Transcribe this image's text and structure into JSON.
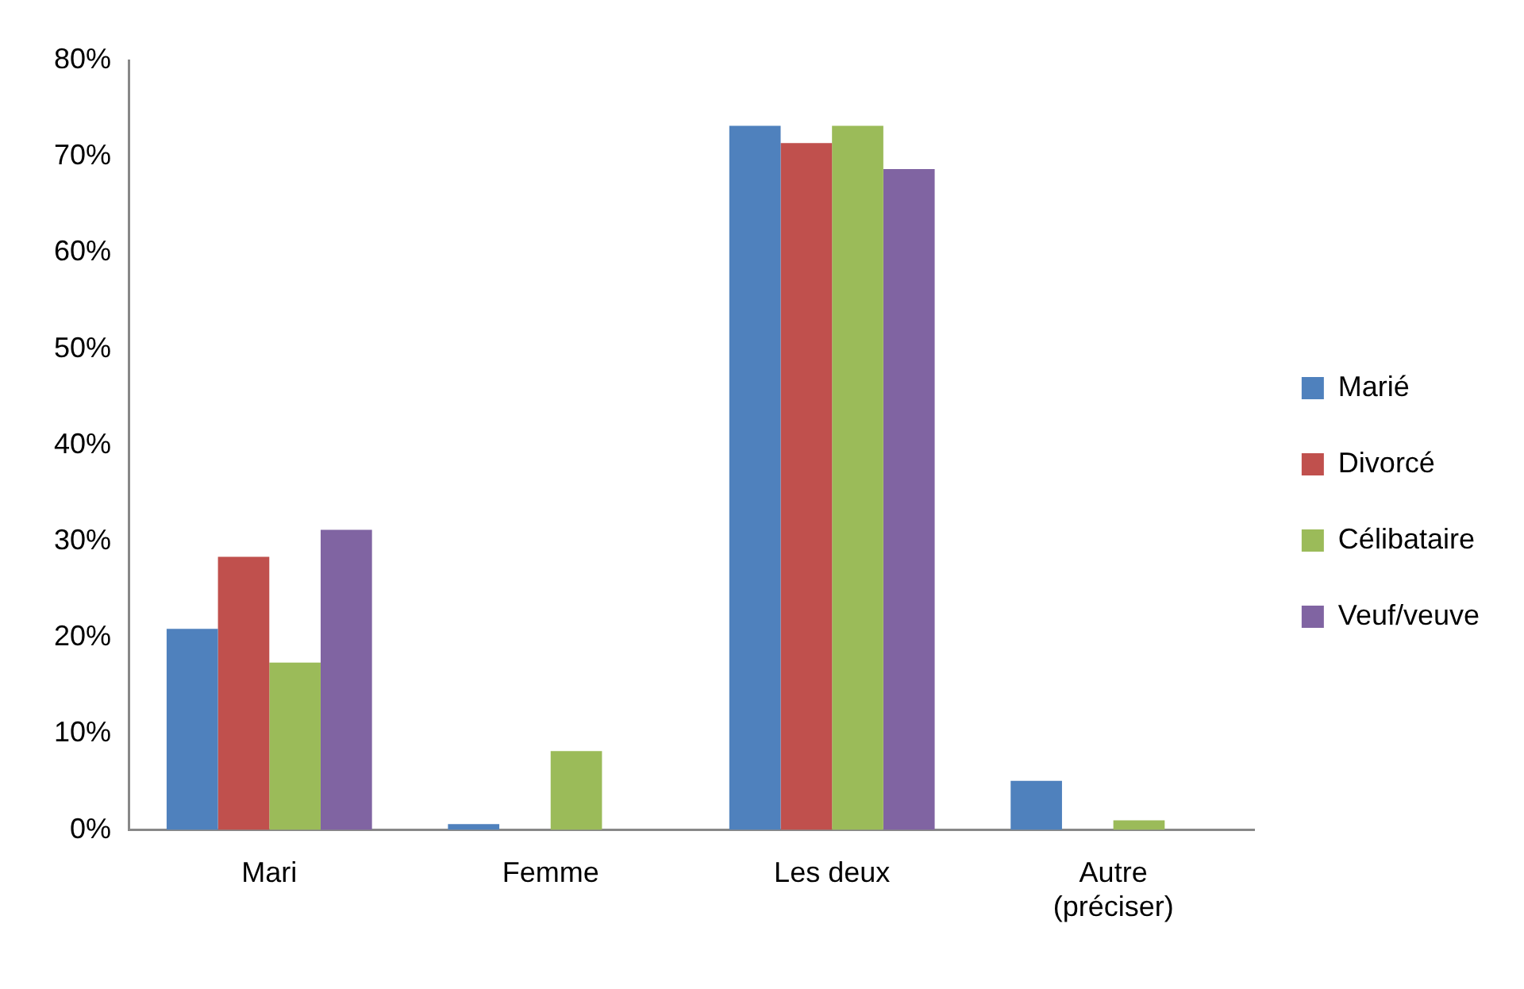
{
  "chart_data": {
    "type": "bar",
    "categories": [
      "Mari",
      "Femme",
      "Les deux",
      "Autre (préciser)"
    ],
    "series": [
      {
        "name": "Marié",
        "color": "#4f81bd",
        "values": [
          20.9,
          0.6,
          73.2,
          5.1
        ]
      },
      {
        "name": "Divorcé",
        "color": "#c0504d",
        "values": [
          28.4,
          0,
          71.4,
          0
        ]
      },
      {
        "name": "Célibataire",
        "color": "#9bbb59",
        "values": [
          17.4,
          8.2,
          73.2,
          1.0
        ]
      },
      {
        "name": "Veuf/veuve",
        "color": "#8064a2",
        "values": [
          31.2,
          0,
          68.7,
          0
        ]
      }
    ],
    "ylim": [
      0,
      80
    ],
    "yticks": [
      {
        "value": 0,
        "label": "0%"
      },
      {
        "value": 10,
        "label": "10%"
      },
      {
        "value": 20,
        "label": "20%"
      },
      {
        "value": 30,
        "label": "30%"
      },
      {
        "value": 40,
        "label": "40%"
      },
      {
        "value": 50,
        "label": "50%"
      },
      {
        "value": 60,
        "label": "60%"
      },
      {
        "value": 70,
        "label": "70%"
      },
      {
        "value": 80,
        "label": "80%"
      }
    ],
    "grid": false,
    "legend": "right"
  }
}
